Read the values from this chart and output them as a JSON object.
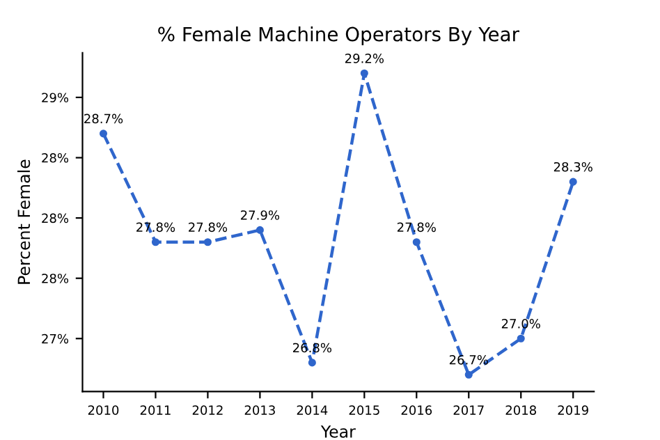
{
  "chart_data": {
    "type": "line",
    "title": "% Female Machine Operators By Year",
    "xlabel": "Year",
    "ylabel": "Percent Female",
    "categories": [
      "2010",
      "2011",
      "2012",
      "2013",
      "2014",
      "2015",
      "2016",
      "2017",
      "2018",
      "2019"
    ],
    "series": [
      {
        "color": "#2f66cc",
        "values": [
          28.7,
          27.8,
          27.8,
          27.9,
          26.8,
          29.2,
          27.8,
          26.7,
          27.0,
          28.3
        ],
        "value_labels": [
          "28.7%",
          "27.8%",
          "27.8%",
          "27.9%",
          "26.8%",
          "29.2%",
          "27.8%",
          "26.7%",
          "27.0%",
          "28.3%"
        ]
      }
    ],
    "ylim": [
      26.56,
      29.37
    ],
    "yticks": [
      {
        "value": 27.0,
        "label": "27%"
      },
      {
        "value": 27.5,
        "label": "28%"
      },
      {
        "value": 28.0,
        "label": "28%"
      },
      {
        "value": 28.5,
        "label": "28%"
      },
      {
        "value": 29.0,
        "label": "29%"
      }
    ],
    "marker": "circle",
    "line_style": "dashed",
    "grid": false,
    "legend": false
  }
}
